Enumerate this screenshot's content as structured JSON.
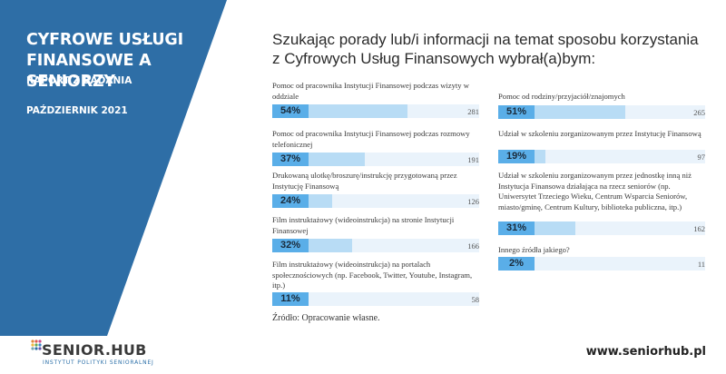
{
  "brand": {
    "title_line1": "CYFROWE USŁUGI",
    "title_line2": "FINANSOWE A SENIORZY",
    "subtitle": "RAPORT Z BADANIA",
    "date": "PAŹDZIERNIK 2021",
    "panel_color": "#2e6ea6"
  },
  "heading": {
    "line1": "Szukając porady lub/i informacji na temat sposobu korzystania",
    "line2": "z Cyfrowych Usług Finansowych wybrał(a)bym:"
  },
  "chart_data": {
    "type": "bar",
    "orientation": "horizontal",
    "unit": "percent of respondents",
    "xlim": [
      0,
      100
    ],
    "items": [
      {
        "label": "Pomoc od pracownika Instytucji Finansowej podczas wizyty w oddziale",
        "percent": 54,
        "percent_label": "54%",
        "count": 281,
        "count_label": "281"
      },
      {
        "label": "Pomoc od pracownika Instytucji Finansowej podczas rozmowy telefonicznej",
        "percent": 37,
        "percent_label": "37%",
        "count": 191,
        "count_label": "191"
      },
      {
        "label": "Drukowaną ulotkę/broszurę/instrukcję przygotowaną przez Instytucję Finansową",
        "percent": 24,
        "percent_label": "24%",
        "count": 126,
        "count_label": "126"
      },
      {
        "label": "Film instruktażowy (wideoinstrukcja) na stronie Instytucji Finansowej",
        "percent": 32,
        "percent_label": "32%",
        "count": 166,
        "count_label": "166"
      },
      {
        "label": "Film instruktażowy (wideoinstrukcja) na portalach społecznościowych (np. Facebook, Twitter, Youtube, Instagram, itp.)",
        "percent": 11,
        "percent_label": "11%",
        "count": 58,
        "count_label": "58"
      },
      {
        "label": "Pomoc od rodziny/przyjaciół/znajomych",
        "percent": 51,
        "percent_label": "51%",
        "count": 265,
        "count_label": "265"
      },
      {
        "label": "Udział w szkoleniu zorganizowanym przez Instytucję Finansową",
        "percent": 19,
        "percent_label": "19%",
        "count": 97,
        "count_label": "97"
      },
      {
        "label": "Udział w szkoleniu zorganizowanym przez jednostkę inną niż Instytucja Finansowa działająca na rzecz seniorów (np. Uniwersytet Trzeciego Wieku, Centrum Wsparcia Seniorów, miasto/gminę, Centrum Kultury, biblioteka publiczna, itp.)",
        "percent": 31,
        "percent_label": "31%",
        "count": 162,
        "count_label": "162"
      },
      {
        "label": "Innego źródła jakiego?",
        "percent": 2,
        "percent_label": "2%",
        "count": 11,
        "count_label": "11"
      }
    ],
    "colors": {
      "label_box": "#5aaee8",
      "fill": "#b8dcf5",
      "track": "#eaf3fb"
    }
  },
  "source": "Źródło: Opracowanie własne.",
  "footer": {
    "logo_text": "SENIOR.HUB",
    "logo_tagline": "INSTYTUT POLITYKI SENIORALNEJ",
    "website": "www.seniorhub.pl"
  }
}
